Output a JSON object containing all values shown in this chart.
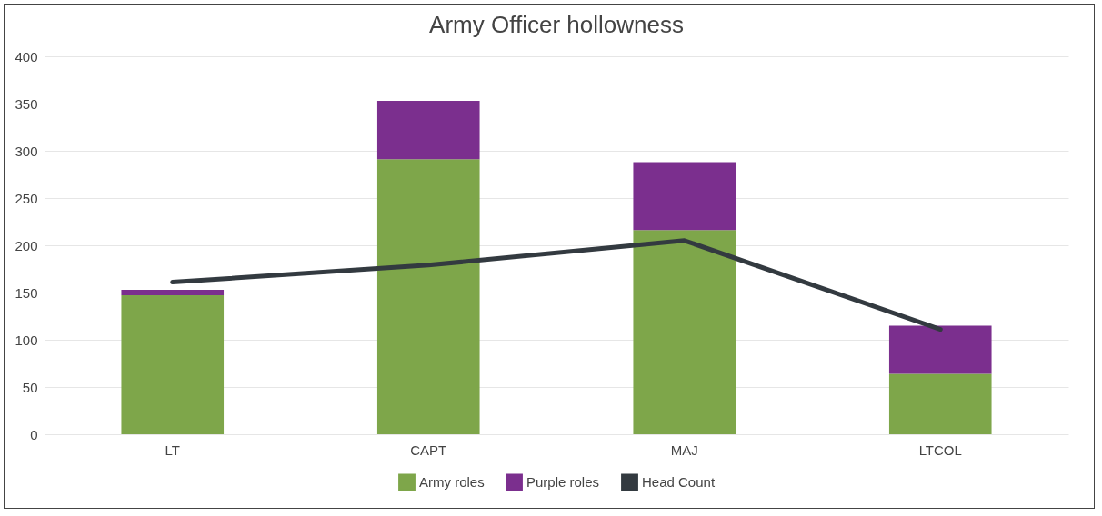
{
  "chart_data": {
    "type": "bar",
    "title": "Army Officer hollowness",
    "categories": [
      "LT",
      "CAPT",
      "MAJ",
      "LTCOL"
    ],
    "stacked": true,
    "ylim": [
      0,
      400
    ],
    "yticks": [
      0,
      50,
      100,
      150,
      200,
      250,
      300,
      350,
      400
    ],
    "grid": "y",
    "legend": "bottom",
    "series": [
      {
        "name": "Army roles",
        "color": "#7ea64a",
        "values": [
          147,
          291,
          216,
          64
        ]
      },
      {
        "name": "Purple roles",
        "color": "#7b2f8e",
        "values": [
          6,
          62,
          72,
          51
        ]
      },
      {
        "name": "Head Count",
        "type": "line",
        "color": "#333a40",
        "values": [
          161,
          179,
          205,
          111
        ]
      }
    ]
  }
}
